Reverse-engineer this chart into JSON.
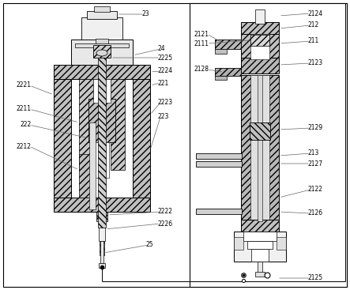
{
  "fig_width": 4.43,
  "fig_height": 3.67,
  "dpi": 100,
  "bg_color": "#ffffff",
  "lc": "#000000",
  "hc": "#666666",
  "gray1": "#c8c8c8",
  "gray2": "#b0b0b0",
  "gray3": "#d8d8d8",
  "white": "#ffffff",
  "fs": 5.5
}
